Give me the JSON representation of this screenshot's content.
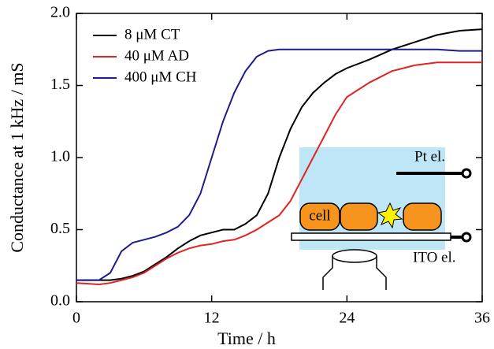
{
  "chart_data": {
    "type": "line",
    "x_label": "Time / h",
    "y_label": "Conductance at 1 kHz / mS",
    "x": [
      0,
      2,
      3,
      4,
      5,
      6,
      7,
      8,
      9,
      10,
      11,
      12,
      13,
      14,
      15,
      16,
      17,
      18,
      19,
      20,
      21,
      22,
      23,
      24,
      26,
      28,
      30,
      32,
      34,
      36
    ],
    "series": [
      {
        "name": "8 μM CT",
        "color": "#000000",
        "values": [
          0.15,
          0.15,
          0.15,
          0.16,
          0.18,
          0.21,
          0.26,
          0.31,
          0.37,
          0.42,
          0.46,
          0.48,
          0.5,
          0.5,
          0.54,
          0.6,
          0.75,
          1.0,
          1.2,
          1.35,
          1.45,
          1.52,
          1.58,
          1.62,
          1.68,
          1.75,
          1.8,
          1.85,
          1.88,
          1.89
        ]
      },
      {
        "name": "40 μM AD",
        "color": "#e02424",
        "values": [
          0.13,
          0.12,
          0.13,
          0.15,
          0.17,
          0.2,
          0.25,
          0.3,
          0.34,
          0.37,
          0.39,
          0.4,
          0.42,
          0.43,
          0.46,
          0.5,
          0.55,
          0.6,
          0.7,
          0.85,
          1.0,
          1.15,
          1.3,
          1.42,
          1.52,
          1.6,
          1.64,
          1.66,
          1.66,
          1.66
        ]
      },
      {
        "name": "400 μM CH",
        "color": "#1c1c8c",
        "values": [
          0.15,
          0.15,
          0.2,
          0.35,
          0.41,
          0.43,
          0.45,
          0.48,
          0.52,
          0.6,
          0.75,
          1.0,
          1.25,
          1.45,
          1.6,
          1.7,
          1.74,
          1.75,
          1.75,
          1.75,
          1.75,
          1.75,
          1.75,
          1.75,
          1.75,
          1.75,
          1.75,
          1.75,
          1.74,
          1.74
        ]
      }
    ],
    "xlim": [
      0,
      36
    ],
    "xticks": [
      0,
      12,
      24,
      36
    ],
    "ylim": [
      0,
      2.0
    ],
    "yticks": [
      {
        "value": 0,
        "label": "0.0"
      },
      0.5,
      {
        "value": 1,
        "label": "1.0"
      },
      1.5,
      {
        "value": 2,
        "label": "2.0"
      }
    ],
    "legend": "upper left",
    "annotations": {
      "top_electrode": "Pt el.",
      "cell": "cell",
      "bottom_electrode": "ITO el."
    }
  }
}
